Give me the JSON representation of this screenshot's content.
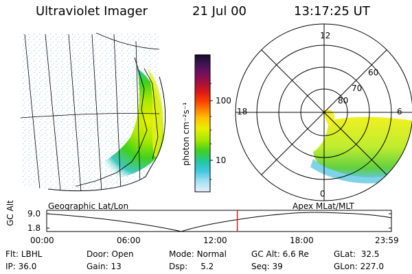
{
  "header": {
    "instrument": "Ultraviolet Imager",
    "date": "21 Jul 00",
    "time": "13:17:25 UT"
  },
  "left_panel": {
    "caption": "Geographic Lat/Lon"
  },
  "right_panel": {
    "caption": "Apex MLat/MLT",
    "mlt_labels": [
      "12",
      "18",
      "6",
      "0"
    ],
    "lat_labels": [
      "60",
      "70",
      "80"
    ]
  },
  "colorbar": {
    "unit_label": "photon cm⁻²s⁻¹",
    "ticks": [
      "100",
      "10"
    ],
    "colors": [
      "#1a0a2a",
      "#3a1450",
      "#6a1060",
      "#a01040",
      "#d81818",
      "#ff4000",
      "#ff8000",
      "#ffc000",
      "#e8f000",
      "#a8e800",
      "#40d020",
      "#20c8a0",
      "#40c8e0",
      "#a0e0f0",
      "#e8f0f8"
    ]
  },
  "timeline": {
    "axis_title": "GC Alt",
    "y_ticks": [
      "9.0",
      "1.8"
    ],
    "x_ticks": [
      "00:00",
      "06:00",
      "12:00",
      "18:00",
      "23:59"
    ],
    "current_time_fraction": 0.553
  },
  "status": {
    "row1": [
      {
        "key": "Flt:",
        "value": "LBHL"
      },
      {
        "key": "Door:",
        "value": "Open"
      },
      {
        "key": "Mode:",
        "value": "Normal"
      },
      {
        "key": "GC Alt:",
        "value": "6.6 Re"
      },
      {
        "key": "GLat:",
        "value": "32.5"
      }
    ],
    "row2": [
      {
        "key": "IP:",
        "value": "36.0"
      },
      {
        "key": "Gain:",
        "value": "13"
      },
      {
        "key": "Dsp:",
        "value": "5.2"
      },
      {
        "key": "Seq:",
        "value": "39"
      },
      {
        "key": "GLon:",
        "value": "227.0"
      }
    ]
  }
}
